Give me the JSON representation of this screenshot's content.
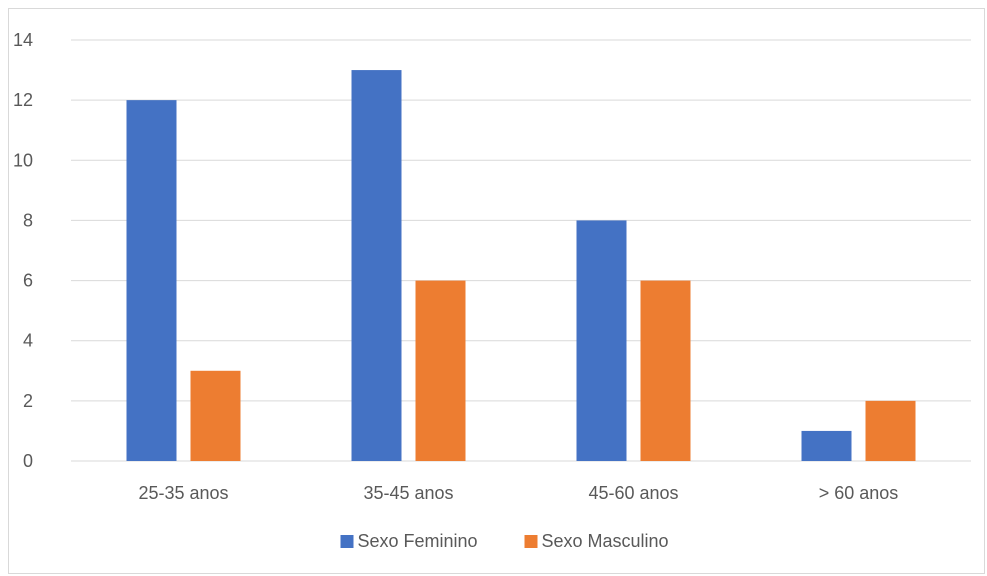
{
  "chart_data": {
    "type": "bar",
    "title": "",
    "xlabel": "",
    "ylabel": "",
    "categories": [
      "25-35 anos",
      "35-45 anos",
      "45-60 anos",
      "> 60 anos"
    ],
    "series": [
      {
        "name": "Sexo Feminino",
        "values": [
          12,
          13,
          8,
          1
        ],
        "color": "#4472c4"
      },
      {
        "name": "Sexo Masculino",
        "values": [
          3,
          6,
          6,
          2
        ],
        "color": "#ed7d31"
      }
    ],
    "ylim": [
      0,
      14
    ],
    "yticks": [
      0,
      2,
      4,
      6,
      8,
      10,
      12,
      14
    ],
    "grid": true,
    "legend_position": "bottom"
  }
}
